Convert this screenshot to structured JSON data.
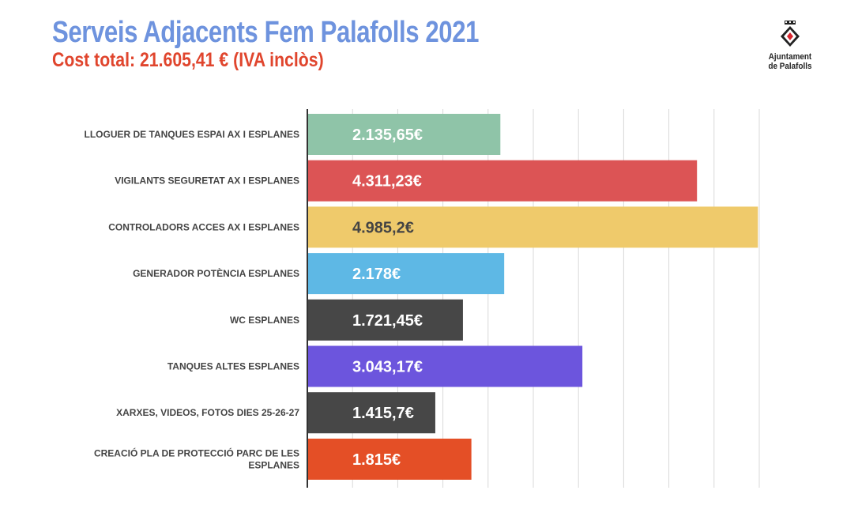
{
  "header": {
    "title": "Serveis Adjacents Fem Palafolls 2021",
    "subtitle": "Cost total: 21.605,41 € (IVA inclòs)"
  },
  "logo": {
    "icon": "palafolls-shield-icon",
    "line1": "Ajuntament",
    "line2": "de Palafolls"
  },
  "chart_data": {
    "type": "bar",
    "orientation": "horizontal",
    "grid": true,
    "xlim": [
      0,
      5000
    ],
    "categories": [
      [
        "LLOGUER DE TANQUES ESPAI AX I ESPLANES"
      ],
      [
        "VIGILANTS SEGURETAT AX I ESPLANES"
      ],
      [
        "CONTROLADORS ACCES AX I ESPLANES"
      ],
      [
        "GENERADOR POTÈNCIA ESPLANES"
      ],
      [
        "WC ESPLANES"
      ],
      [
        "TANQUES ALTES ESPLANES"
      ],
      [
        "XARXES, VIDEOS, FOTOS DIES 25-26-27"
      ],
      [
        "CREACIÓ PLA DE PROTECCIÓ PARC DE LES",
        "ESPLANES"
      ]
    ],
    "values": [
      2135.65,
      4311.23,
      4985.2,
      2178,
      1721.45,
      3043.17,
      1415.7,
      1815
    ],
    "data_labels": [
      "2.135,65€",
      "4.311,23€",
      "4.985,2€",
      "2.178€",
      "1.721,45€",
      "3.043,17€",
      "1.415,7€",
      "1.815€"
    ],
    "colors": [
      "#8fc4a8",
      "#dc5455",
      "#efca6b",
      "#5eb8e5",
      "#474747",
      "#6c55dd",
      "#474747",
      "#e44f26"
    ],
    "label_colors": [
      "#ffffff",
      "#ffffff",
      "#444444",
      "#ffffff",
      "#ffffff",
      "#ffffff",
      "#ffffff",
      "#ffffff"
    ]
  }
}
